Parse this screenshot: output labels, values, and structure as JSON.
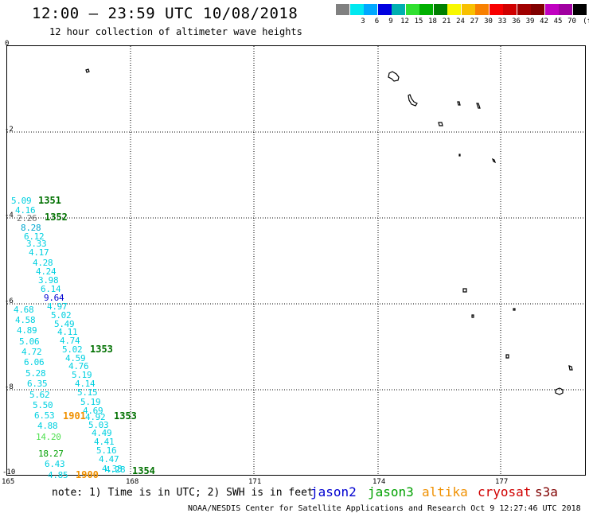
{
  "header": {
    "title": "12:00 — 23:59 UTC 10/08/2018",
    "subtitle": "12 hour collection of altimeter wave heights"
  },
  "legend": {
    "unit": "(ft)",
    "swatches": [
      {
        "color": "#808080",
        "label": ""
      },
      {
        "color": "#00e8f0",
        "label": "3"
      },
      {
        "color": "#00a8ff",
        "label": "6"
      },
      {
        "color": "#0000e0",
        "label": "9"
      },
      {
        "color": "#00b0b0",
        "label": "12"
      },
      {
        "color": "#30e030",
        "label": "15"
      },
      {
        "color": "#00b000",
        "label": "18"
      },
      {
        "color": "#008000",
        "label": "21"
      },
      {
        "color": "#f8f800",
        "label": "24"
      },
      {
        "color": "#f8c000",
        "label": "27"
      },
      {
        "color": "#f88000",
        "label": "30"
      },
      {
        "color": "#f80000",
        "label": "33"
      },
      {
        "color": "#d00000",
        "label": "36"
      },
      {
        "color": "#a00000",
        "label": "39"
      },
      {
        "color": "#800000",
        "label": "42"
      },
      {
        "color": "#c000c0",
        "label": "45"
      },
      {
        "color": "#a000a0",
        "label": "70"
      },
      {
        "color": "#000000",
        "label": ""
      }
    ]
  },
  "map": {
    "lon_ticks": [
      "165",
      "168",
      "171",
      "174",
      "177"
    ],
    "lat_ticks": [
      "0",
      "-2",
      "-4",
      "-6",
      "-8",
      "-10"
    ],
    "observations": [
      {
        "text": "5.09",
        "color": "#00d0e0"
      },
      {
        "text": "4.16",
        "color": "#00d0e0"
      },
      {
        "text": "2.26",
        "color": "#707070"
      },
      {
        "text": "8.28",
        "color": "#00a8d0"
      },
      {
        "text": "6.12",
        "color": "#00d0e0"
      },
      {
        "text": "3.33",
        "color": "#00d0e0"
      },
      {
        "text": "4.17",
        "color": "#00d0e0"
      },
      {
        "text": "4.28",
        "color": "#00d0e0"
      },
      {
        "text": "4.24",
        "color": "#00d0e0"
      },
      {
        "text": "3.98",
        "color": "#00d0e0"
      },
      {
        "text": "6.14",
        "color": "#00d0e0"
      },
      {
        "text": "9.64",
        "color": "#0000d0"
      },
      {
        "text": "4.68",
        "color": "#00d0e0"
      },
      {
        "text": "4.97",
        "color": "#00d0e0"
      },
      {
        "text": "4.58",
        "color": "#00d0e0"
      },
      {
        "text": "5.02",
        "color": "#00d0e0"
      },
      {
        "text": "4.89",
        "color": "#00d0e0"
      },
      {
        "text": "5.49",
        "color": "#00d0e0"
      },
      {
        "text": "4.11",
        "color": "#00d0e0"
      },
      {
        "text": "5.06",
        "color": "#00d0e0"
      },
      {
        "text": "4.74",
        "color": "#00d0e0"
      },
      {
        "text": "4.72",
        "color": "#00d0e0"
      },
      {
        "text": "5.02",
        "color": "#00d0e0"
      },
      {
        "text": "4.59",
        "color": "#00d0e0"
      },
      {
        "text": "6.06",
        "color": "#00d0e0"
      },
      {
        "text": "4.76",
        "color": "#00d0e0"
      },
      {
        "text": "5.28",
        "color": "#00d0e0"
      },
      {
        "text": "5.19",
        "color": "#00d0e0"
      },
      {
        "text": "6.35",
        "color": "#00d0e0"
      },
      {
        "text": "4.14",
        "color": "#00d0e0"
      },
      {
        "text": "5.62",
        "color": "#00d0e0"
      },
      {
        "text": "5.15",
        "color": "#00d0e0"
      },
      {
        "text": "5.50",
        "color": "#00d0e0"
      },
      {
        "text": "5.19",
        "color": "#00d0e0"
      },
      {
        "text": "4.69",
        "color": "#00d0e0"
      },
      {
        "text": "6.53",
        "color": "#00d0e0"
      },
      {
        "text": "4.92",
        "color": "#00d0e0"
      },
      {
        "text": "4.88",
        "color": "#00d0e0"
      },
      {
        "text": "5.03",
        "color": "#00d0e0"
      },
      {
        "text": "14.20",
        "color": "#50e050"
      },
      {
        "text": "4.49",
        "color": "#00d0e0"
      },
      {
        "text": "4.41",
        "color": "#00d0e0"
      },
      {
        "text": "5.16",
        "color": "#00d0e0"
      },
      {
        "text": "18.27",
        "color": "#00a000"
      },
      {
        "text": "4.47",
        "color": "#00d0e0"
      },
      {
        "text": "6.43",
        "color": "#00d0e0"
      },
      {
        "text": "4.38",
        "color": "#00d0e0"
      },
      {
        "text": "4.85",
        "color": "#00d0e0"
      },
      {
        "text": "4.28",
        "color": "#00d0e0"
      }
    ],
    "pass_times": [
      {
        "text": "1351",
        "color": "#007000"
      },
      {
        "text": "1352",
        "color": "#007000"
      },
      {
        "text": "1353",
        "color": "#007000"
      },
      {
        "text": "1901",
        "color": "#f09000"
      },
      {
        "text": "1353",
        "color": "#007000"
      },
      {
        "text": "1900",
        "color": "#f09000"
      },
      {
        "text": "1354",
        "color": "#007000"
      }
    ]
  },
  "footer": {
    "note": "note: 1) Time is in UTC; 2) SWH is in feet",
    "satellites": [
      {
        "name": "jason2",
        "color": "#0000d0"
      },
      {
        "name": "jason3",
        "color": "#00a000"
      },
      {
        "name": "altika",
        "color": "#f09000"
      },
      {
        "name": "cryosat",
        "color": "#d00000"
      },
      {
        "name": "s3a",
        "color": "#800000"
      }
    ],
    "credit": "NOAA/NESDIS Center for Satellite Applications and Research   Oct  9 12:27:46 UTC 2018"
  }
}
